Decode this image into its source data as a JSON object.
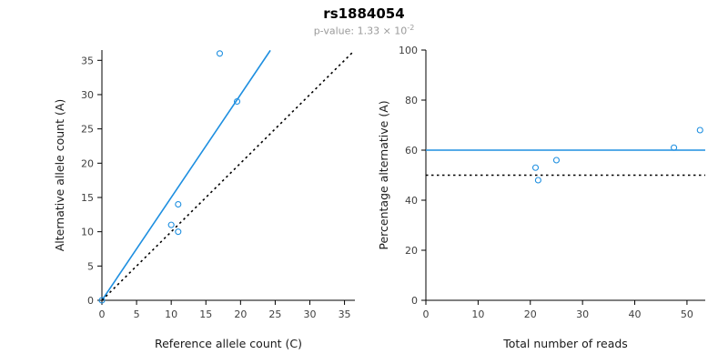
{
  "title": "rs1884054",
  "subtitle": {
    "base": "p-value: 1.33 × 10",
    "exponent": "-2"
  },
  "colors": {
    "accent_blue": "#1e8fe0",
    "line_black": "#000000",
    "subtitle_gray": "#9a9a9a"
  },
  "chart_data": [
    {
      "type": "scatter",
      "title": "rs1884054",
      "xlabel": "Reference allele count (C)",
      "ylabel": "Alternative allele count (A)",
      "xlim": [
        0,
        36.5
      ],
      "ylim": [
        0,
        36.5
      ],
      "xticks": [
        0,
        5,
        10,
        15,
        20,
        25,
        30,
        35
      ],
      "yticks": [
        0,
        5,
        10,
        15,
        20,
        25,
        30,
        35
      ],
      "grid": false,
      "legend": "none",
      "point_color": "#1e8fe0",
      "points": [
        [
          0,
          0
        ],
        [
          10,
          11
        ],
        [
          11,
          10
        ],
        [
          11,
          14
        ],
        [
          17,
          36
        ],
        [
          19.5,
          29
        ]
      ],
      "lines": [
        {
          "name": "fitted-allelic-ratio-line",
          "style": "solid",
          "color": "#1e8fe0",
          "x": [
            0,
            24.3
          ],
          "y": [
            0,
            36.45
          ]
        },
        {
          "name": "identity-line",
          "style": "dotted",
          "color": "#000000",
          "x": [
            0,
            36.4
          ],
          "y": [
            0,
            36.4
          ]
        }
      ]
    },
    {
      "type": "scatter",
      "title": "rs1884054",
      "xlabel": "Total number of reads",
      "ylabel": "Percentage alternative (A)",
      "xlim": [
        0,
        53.5
      ],
      "ylim": [
        0,
        100
      ],
      "xticks": [
        0,
        10,
        20,
        30,
        40,
        50
      ],
      "yticks": [
        0,
        20,
        40,
        60,
        80,
        100
      ],
      "grid": false,
      "legend": "none",
      "point_color": "#1e8fe0",
      "points": [
        [
          21,
          53
        ],
        [
          21.5,
          48
        ],
        [
          25,
          56
        ],
        [
          47.5,
          61
        ],
        [
          52.5,
          68
        ]
      ],
      "lines": [
        {
          "name": "mean-percentage-line",
          "style": "solid",
          "color": "#1e8fe0",
          "x": [
            0,
            53.5
          ],
          "y": [
            60,
            60
          ]
        },
        {
          "name": "null-fifty-percent-line",
          "style": "dotted",
          "color": "#000000",
          "x": [
            0,
            53.5
          ],
          "y": [
            50,
            50
          ]
        }
      ]
    }
  ]
}
